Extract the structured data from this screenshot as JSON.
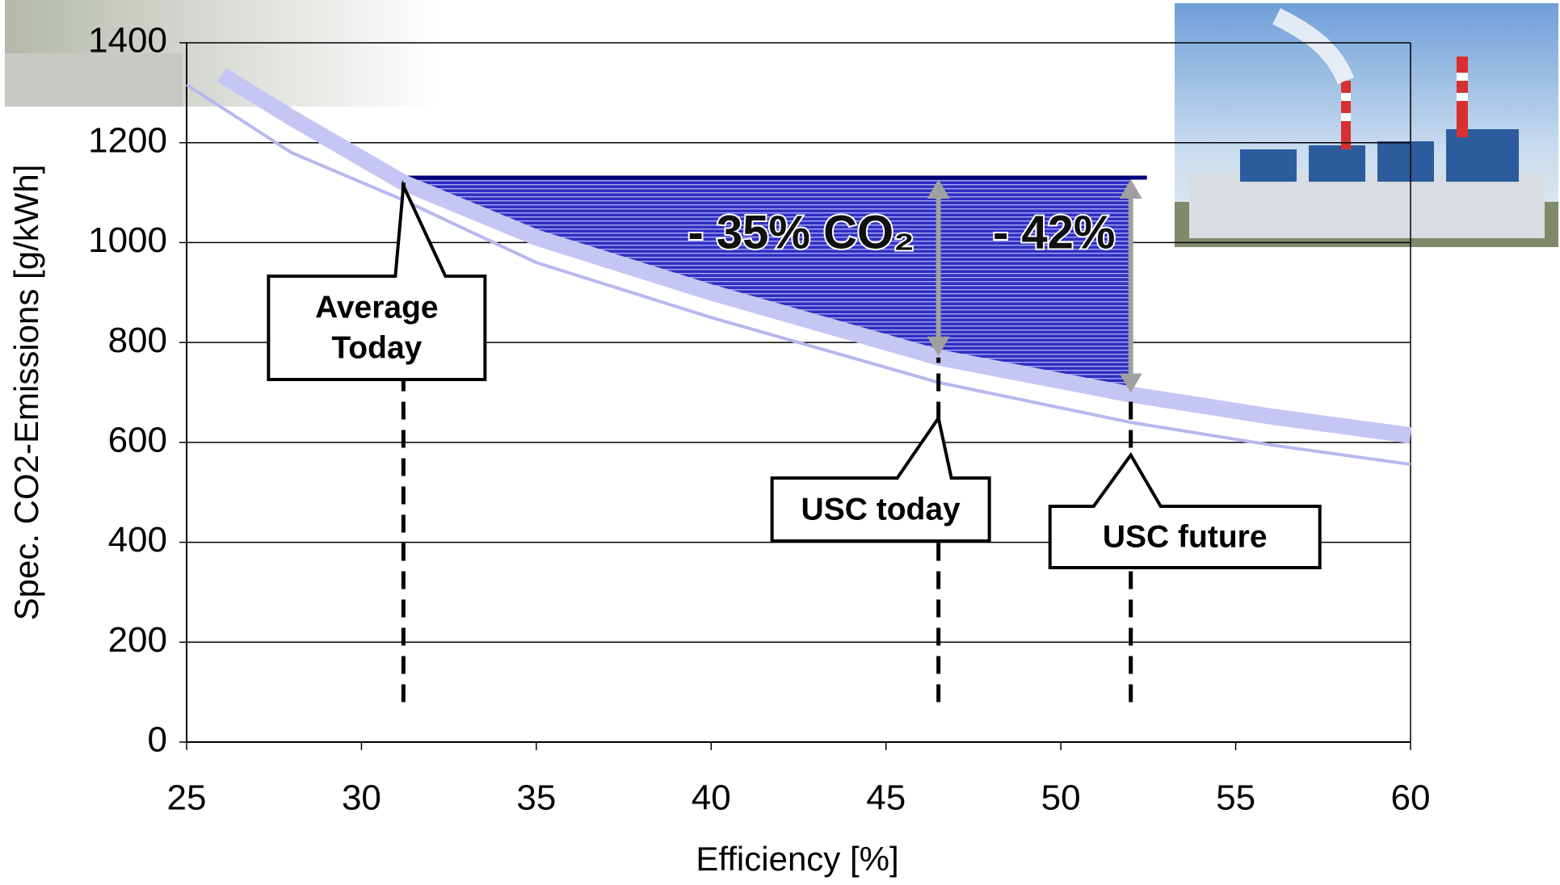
{
  "chart_data": {
    "type": "line",
    "xlabel": "Efficiency [%]",
    "ylabel": "Spec. CO2-Emissions [g/kWh]",
    "xlim": [
      25,
      60
    ],
    "xticks": [
      25,
      30,
      35,
      40,
      45,
      50,
      55,
      60
    ],
    "ylim": [
      0,
      1400
    ],
    "yticks": [
      0,
      200,
      400,
      600,
      800,
      1000,
      1200,
      1400
    ],
    "grid": true,
    "series": [
      {
        "x": [
          26,
          28,
          31.2,
          35,
          40,
          46.5,
          52,
          56,
          60
        ],
        "values": [
          1336,
          1250,
          1120,
          1010,
          900,
          770,
          696,
          652,
          614
        ],
        "color": "#c6c6f4"
      },
      {
        "x": [
          25,
          28,
          31.2,
          35,
          40,
          46.5,
          52,
          56,
          60
        ],
        "values": [
          1316,
          1180,
          1085,
          960,
          850,
          720,
          640,
          595,
          556
        ],
        "color": "#b8b8f0"
      }
    ],
    "reference": 1130,
    "markers": [
      {
        "x": 31.2,
        "label": [
          "Average",
          "Today"
        ]
      },
      {
        "x": 46.5,
        "label": [
          "USC today"
        ]
      },
      {
        "x": 52,
        "label": [
          "USC future"
        ]
      }
    ],
    "reductions": [
      {
        "x": 46.5,
        "label": "- 35% CO₂"
      },
      {
        "x": 52,
        "label": "- 42%"
      }
    ],
    "floor": 80
  }
}
